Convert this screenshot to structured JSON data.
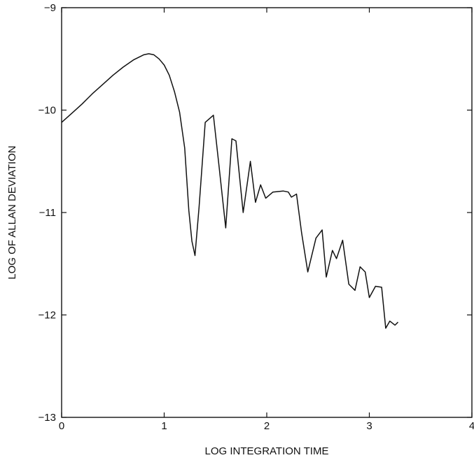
{
  "chart_data": {
    "type": "line",
    "title": "",
    "xlabel": "LOG INTEGRATION TIME",
    "ylabel": "LOG OF ALLAN DEVIATION",
    "xlim": [
      0,
      4
    ],
    "ylim": [
      -13,
      -9
    ],
    "x_ticks": [
      0,
      1,
      2,
      3,
      4
    ],
    "x_tick_labels": [
      "0",
      "1",
      "2",
      "3",
      "4"
    ],
    "y_ticks": [
      -9,
      -10,
      -11,
      -12,
      -13
    ],
    "y_tick_labels": [
      "−9",
      "−10",
      "−11",
      "−12",
      "−13"
    ],
    "grid": false,
    "line_color": "#111111",
    "series": [
      {
        "x": [
          0.0,
          0.1,
          0.2,
          0.3,
          0.4,
          0.5,
          0.6,
          0.7,
          0.8,
          0.85,
          0.9,
          0.95,
          1.0,
          1.05,
          1.1,
          1.15,
          1.2,
          1.24,
          1.27,
          1.3,
          1.34,
          1.4,
          1.48,
          1.53,
          1.6,
          1.66,
          1.7,
          1.77,
          1.84,
          1.89,
          1.94,
          1.99,
          2.06,
          2.16,
          2.21,
          2.24,
          2.29,
          2.34,
          2.4,
          2.48,
          2.54,
          2.58,
          2.64,
          2.68,
          2.74,
          2.8,
          2.86,
          2.91,
          2.96,
          3.0,
          3.06,
          3.12,
          3.16,
          3.2,
          3.25,
          3.28
        ],
        "y": [
          -10.12,
          -10.03,
          -9.94,
          -9.84,
          -9.75,
          -9.66,
          -9.58,
          -9.51,
          -9.46,
          -9.45,
          -9.46,
          -9.5,
          -9.56,
          -9.66,
          -9.82,
          -10.02,
          -10.37,
          -10.98,
          -11.28,
          -11.42,
          -10.95,
          -10.12,
          -10.05,
          -10.5,
          -11.15,
          -10.28,
          -10.3,
          -11.0,
          -10.5,
          -10.9,
          -10.73,
          -10.86,
          -10.8,
          -10.79,
          -10.8,
          -10.85,
          -10.82,
          -11.2,
          -11.58,
          -11.25,
          -11.17,
          -11.63,
          -11.37,
          -11.45,
          -11.27,
          -11.7,
          -11.76,
          -11.53,
          -11.58,
          -11.83,
          -11.72,
          -11.73,
          -12.13,
          -12.06,
          -12.1,
          -12.07
        ]
      }
    ]
  }
}
